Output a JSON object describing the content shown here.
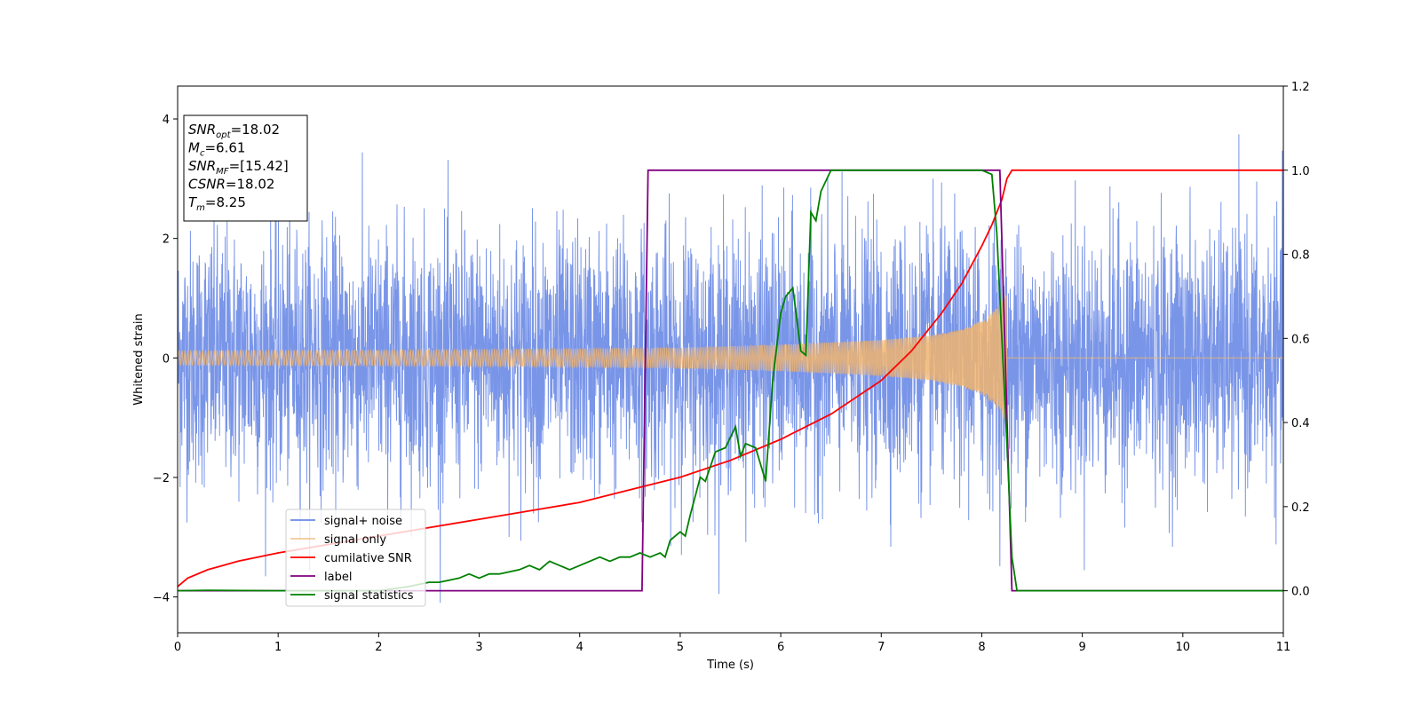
{
  "chart_data": {
    "type": "line",
    "xlabel": "Time (s)",
    "ylabel": "Whitened strain",
    "xlim": [
      0,
      11
    ],
    "ylim": [
      -4.6,
      4.55
    ],
    "y2lim": [
      -0.1,
      1.2
    ],
    "xticks": [
      "0",
      "1",
      "2",
      "3",
      "4",
      "5",
      "6",
      "7",
      "8",
      "9",
      "10",
      "11"
    ],
    "yticks": [
      "−4",
      "−2",
      "0",
      "2",
      "4"
    ],
    "y2ticks": [
      "0.0",
      "0.2",
      "0.4",
      "0.6",
      "0.8",
      "1.0",
      "1.2"
    ],
    "grid": false,
    "legend_position": "lower-left",
    "info_box": [
      {
        "base": "SNR",
        "sub": "opt",
        "value": "=18.02"
      },
      {
        "base": "M",
        "sub": "c",
        "value": "=6.61"
      },
      {
        "base": "SNR",
        "sub": "MF",
        "value": "=[15.42]"
      },
      {
        "base": "CSNR",
        "sub": "",
        "value": "=18.02"
      },
      {
        "base": "T",
        "sub": "m",
        "value": "=8.25"
      }
    ],
    "series": [
      {
        "name": "signal+ noise",
        "axis": "left",
        "color": "#6a8ae6",
        "style": "noise",
        "noise_amplitude": 2.7,
        "spike_max": 4.1,
        "x_range": [
          0,
          11
        ]
      },
      {
        "name": "signal only",
        "axis": "left",
        "color": "#f0b46e",
        "style": "chirp",
        "merger_time": 8.25,
        "envelope": {
          "x": [
            0,
            2,
            4,
            5,
            6,
            7,
            7.5,
            7.8,
            8.0,
            8.1,
            8.2,
            8.25
          ],
          "y": [
            0.12,
            0.13,
            0.15,
            0.17,
            0.22,
            0.3,
            0.38,
            0.48,
            0.62,
            0.75,
            0.95,
            1.1
          ]
        }
      },
      {
        "name": "cumilative SNR",
        "axis": "right",
        "color": "#ff0000",
        "x": [
          0,
          0.1,
          0.3,
          0.6,
          1.0,
          1.5,
          2.0,
          2.5,
          3.0,
          3.5,
          4.0,
          4.5,
          5.0,
          5.5,
          6.0,
          6.5,
          7.0,
          7.3,
          7.6,
          7.8,
          8.0,
          8.1,
          8.2,
          8.25,
          8.3,
          11
        ],
        "y": [
          0.01,
          0.03,
          0.05,
          0.07,
          0.09,
          0.11,
          0.13,
          0.15,
          0.17,
          0.19,
          0.21,
          0.24,
          0.27,
          0.31,
          0.36,
          0.42,
          0.5,
          0.57,
          0.66,
          0.73,
          0.82,
          0.87,
          0.93,
          0.98,
          1.0,
          1.0
        ]
      },
      {
        "name": "label",
        "axis": "right",
        "color": "#800080",
        "x": [
          0,
          4.62,
          4.68,
          8.18,
          8.3,
          11
        ],
        "y": [
          0,
          0,
          1,
          1,
          0,
          0
        ]
      },
      {
        "name": "signal statistics",
        "axis": "right",
        "color": "#008000",
        "x": [
          0,
          0.3,
          1.0,
          2.0,
          2.3,
          2.5,
          2.6,
          2.8,
          2.9,
          3.0,
          3.1,
          3.2,
          3.4,
          3.5,
          3.6,
          3.7,
          3.8,
          3.9,
          4.0,
          4.1,
          4.2,
          4.3,
          4.4,
          4.5,
          4.6,
          4.7,
          4.8,
          4.85,
          4.9,
          5.0,
          5.05,
          5.1,
          5.2,
          5.25,
          5.35,
          5.45,
          5.55,
          5.6,
          5.65,
          5.75,
          5.85,
          5.92,
          6.0,
          6.05,
          6.12,
          6.2,
          6.25,
          6.3,
          6.35,
          6.4,
          6.5,
          6.7,
          6.9,
          7.0,
          7.2,
          7.5,
          7.8,
          7.95,
          8.0,
          8.1,
          8.15,
          8.18,
          8.25,
          8.3,
          8.35,
          11
        ],
        "y": [
          0,
          0.001,
          0.0,
          0.0,
          0.01,
          0.02,
          0.02,
          0.03,
          0.04,
          0.03,
          0.04,
          0.04,
          0.05,
          0.06,
          0.05,
          0.07,
          0.06,
          0.05,
          0.06,
          0.07,
          0.08,
          0.07,
          0.08,
          0.08,
          0.09,
          0.08,
          0.09,
          0.08,
          0.12,
          0.14,
          0.13,
          0.18,
          0.27,
          0.26,
          0.33,
          0.34,
          0.39,
          0.32,
          0.35,
          0.34,
          0.26,
          0.5,
          0.66,
          0.7,
          0.72,
          0.57,
          0.56,
          0.9,
          0.88,
          0.95,
          1.0,
          1.0,
          1.0,
          1.0,
          1.0,
          1.0,
          1.0,
          1.0,
          1.0,
          0.99,
          0.85,
          0.7,
          0.35,
          0.08,
          0.0,
          0.0
        ]
      }
    ]
  }
}
